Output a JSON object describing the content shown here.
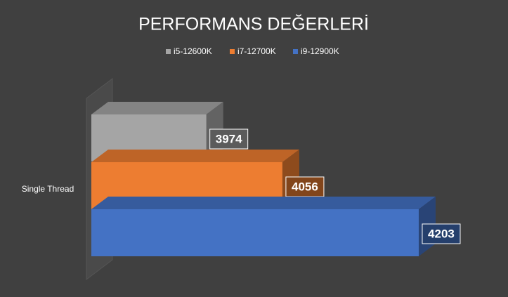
{
  "chart_data": {
    "type": "bar3d_horizontal",
    "title": "PERFORMANS DEĞERLERİ",
    "categories": [
      "Single Thread"
    ],
    "series": [
      {
        "name": "i5-12600K",
        "color": "#a5a5a5",
        "values": [
          3974
        ]
      },
      {
        "name": "i7-12700K",
        "color": "#ed7d31",
        "values": [
          4056
        ]
      },
      {
        "name": "i9-12900K",
        "color": "#4472c4",
        "values": [
          4203
        ]
      }
    ],
    "xlim": [
      3850,
      4250
    ],
    "legend": "top"
  }
}
